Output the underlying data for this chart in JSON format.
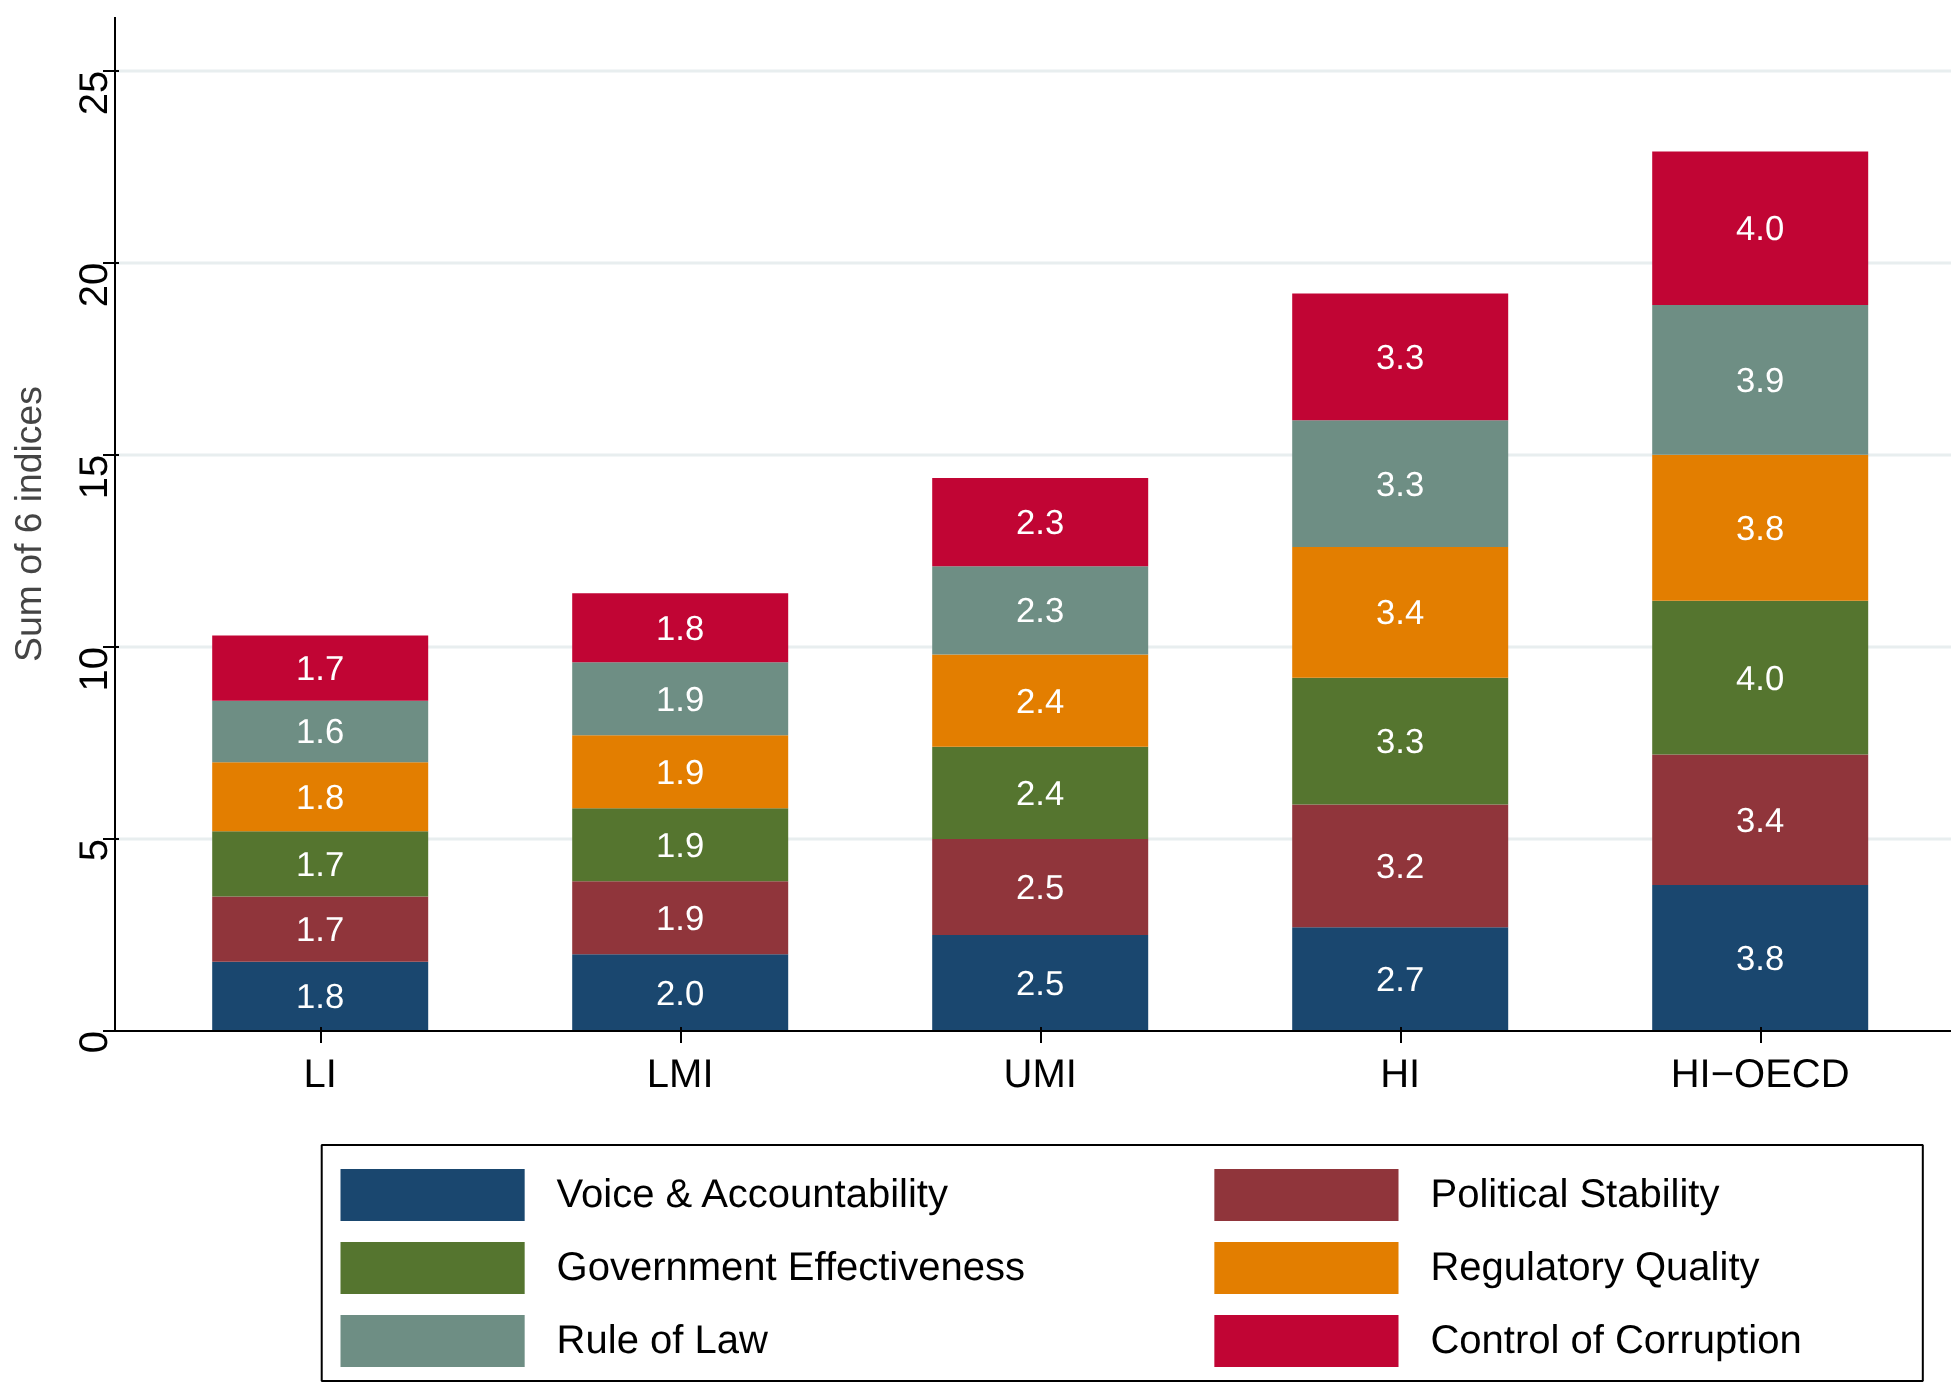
{
  "chart_data": {
    "type": "bar",
    "stacked": true,
    "ylabel": "Sum of 6 indices",
    "categories": [
      "LI",
      "LMI",
      "UMI",
      "HI",
      "HI−OECD"
    ],
    "series": [
      {
        "name": "Voice & Accountability",
        "color": "#1a476f",
        "values": [
          1.8,
          2.0,
          2.5,
          2.7,
          3.8
        ],
        "value_labels": [
          "1.8",
          "2.0",
          "2.5",
          "2.7",
          "3.8"
        ]
      },
      {
        "name": "Political Stability",
        "color": "#90353b",
        "values": [
          1.7,
          1.9,
          2.5,
          3.2,
          3.4
        ],
        "value_labels": [
          "1.7",
          "1.9",
          "2.5",
          "3.2",
          "3.4"
        ]
      },
      {
        "name": "Government Effectiveness",
        "color": "#55752f",
        "values": [
          1.7,
          1.9,
          2.4,
          3.3,
          4.0
        ],
        "value_labels": [
          "1.7",
          "1.9",
          "2.4",
          "3.3",
          "4.0"
        ]
      },
      {
        "name": "Regulatory Quality",
        "color": "#e37e00",
        "values": [
          1.8,
          1.9,
          2.4,
          3.4,
          3.8
        ],
        "value_labels": [
          "1.8",
          "1.9",
          "2.4",
          "3.4",
          "3.8"
        ]
      },
      {
        "name": "Rule of Law",
        "color": "#6e8e84",
        "values": [
          1.6,
          1.9,
          2.3,
          3.3,
          3.9
        ],
        "value_labels": [
          "1.6",
          "1.9",
          "2.3",
          "3.3",
          "3.9"
        ]
      },
      {
        "name": "Control of Corruption",
        "color": "#c10534",
        "values": [
          1.7,
          1.8,
          2.3,
          3.3,
          4.0
        ],
        "value_labels": [
          "1.7",
          "1.8",
          "2.3",
          "3.3",
          "4.0"
        ]
      }
    ],
    "ylim": [
      0,
      26.4
    ],
    "yticks": [
      0,
      5,
      10,
      15,
      20,
      25
    ],
    "grid": "y",
    "legend": "bottom"
  }
}
